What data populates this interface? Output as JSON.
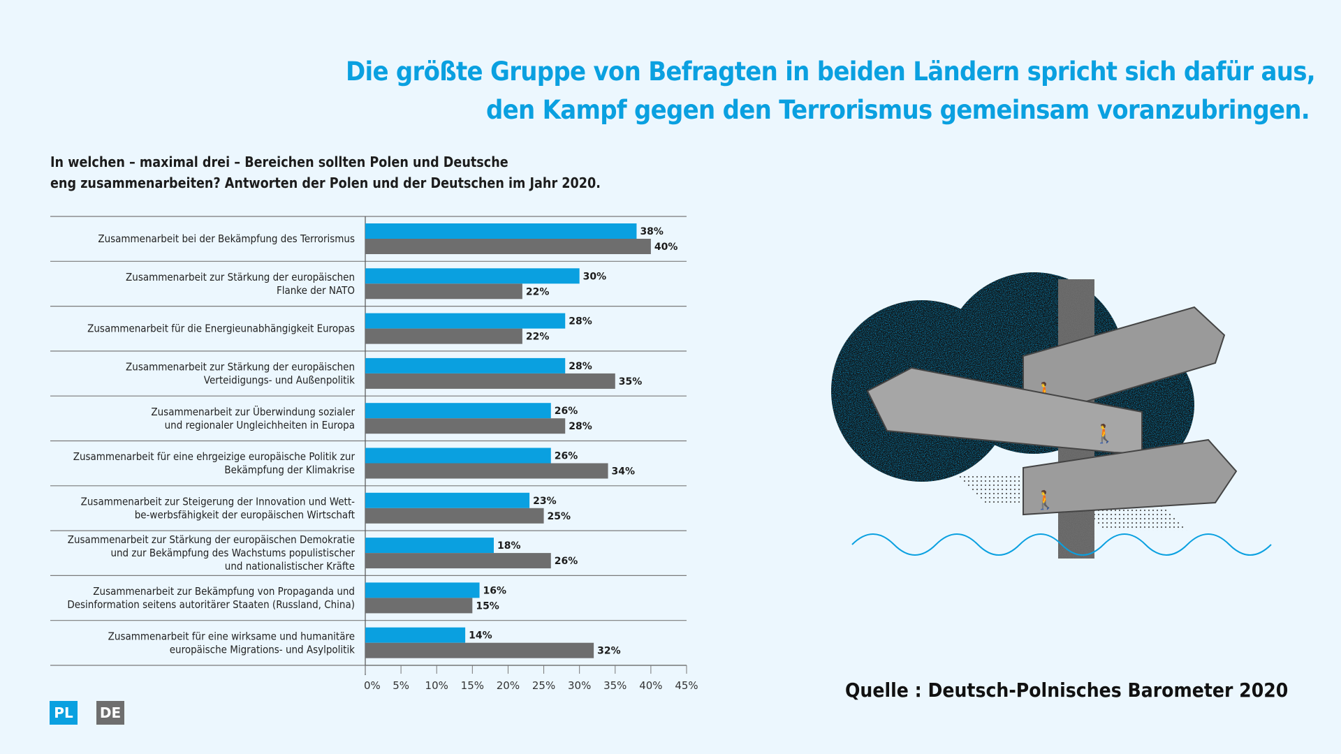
{
  "headline": {
    "line1": "Die größte Gruppe von Befragten in beiden Ländern spricht sich dafür aus,",
    "line2": "den Kampf gegen den Terrorismus gemeinsam voranzubringen."
  },
  "question": {
    "line1": "In welchen – maximal drei – Bereichen sollten Polen und Deutsche",
    "line2": "eng zusammenarbeiten? Antworten der Polen und der Deutschen im Jahr 2020."
  },
  "legend": {
    "pl": {
      "label": "PL",
      "color": "#0aa0e0"
    },
    "de": {
      "label": "DE",
      "color": "#6e6e6e"
    }
  },
  "source": "Quelle : Deutsch-Polnisches Barometer 2020",
  "illustration": {
    "icon": "signpost-illustration"
  },
  "chart_data": {
    "type": "bar",
    "orientation": "horizontal",
    "title": "In welchen – maximal drei – Bereichen sollten Polen und Deutsche eng zusammenarbeiten? Antworten der Polen und der Deutschen im Jahr 2020.",
    "xlabel": "",
    "ylabel": "",
    "xlim": [
      0,
      45
    ],
    "xticks": [
      0,
      5,
      10,
      15,
      20,
      25,
      30,
      35,
      40,
      45
    ],
    "xtick_labels": [
      "0%",
      "5%",
      "10%",
      "15%",
      "20%",
      "25%",
      "30%",
      "35%",
      "40%",
      "45%"
    ],
    "grid": false,
    "legend_position": "bottom-left",
    "categories": [
      [
        "Zusammenarbeit bei der Bekämpfung des Terrorismus"
      ],
      [
        "Zusammenarbeit zur Stärkung der europäischen",
        "Flanke der NATO"
      ],
      [
        "Zusammenarbeit für die Energieunabhängigkeit Europas"
      ],
      [
        "Zusammenarbeit zur Stärkung der europäischen",
        "Verteidigungs- und Außenpolitik"
      ],
      [
        "Zusammenarbeit zur Überwindung sozialer",
        "und regionaler Ungleichheiten in Europa"
      ],
      [
        "Zusammenarbeit für eine ehrgeizige europäische Politik zur",
        "Bekämpfung der Klimakrise"
      ],
      [
        "Zusammenarbeit zur Steigerung der Innovation und Wett-",
        "be-werbsfähigkeit der europäischen Wirtschaft"
      ],
      [
        "Zusammenarbeit zur Stärkung der europäischen Demokratie",
        "und zur Bekämpfung des Wachstums populistischer",
        "und nationalistischer Kräfte"
      ],
      [
        "Zusammenarbeit zur Bekämpfung von Propaganda und",
        "Desinformation seitens autoritärer Staaten (Russland, China)"
      ],
      [
        "Zusammenarbeit für eine wirksame und humanitäre",
        "europäische Migrations- und Asylpolitik"
      ]
    ],
    "series": [
      {
        "name": "PL",
        "color": "#0aa0e0",
        "values": [
          38,
          30,
          28,
          28,
          26,
          26,
          23,
          18,
          16,
          14
        ],
        "labels": [
          "38%",
          "30%",
          "28%",
          "28%",
          "26%",
          "26%",
          "23%",
          "18%",
          "16%",
          "14%"
        ]
      },
      {
        "name": "DE",
        "color": "#6e6e6e",
        "values": [
          40,
          22,
          22,
          35,
          28,
          34,
          25,
          26,
          15,
          32
        ],
        "labels": [
          "40%",
          "22%",
          "22%",
          "35%",
          "28%",
          "34%",
          "25%",
          "26%",
          "15%",
          "32%"
        ]
      }
    ]
  }
}
